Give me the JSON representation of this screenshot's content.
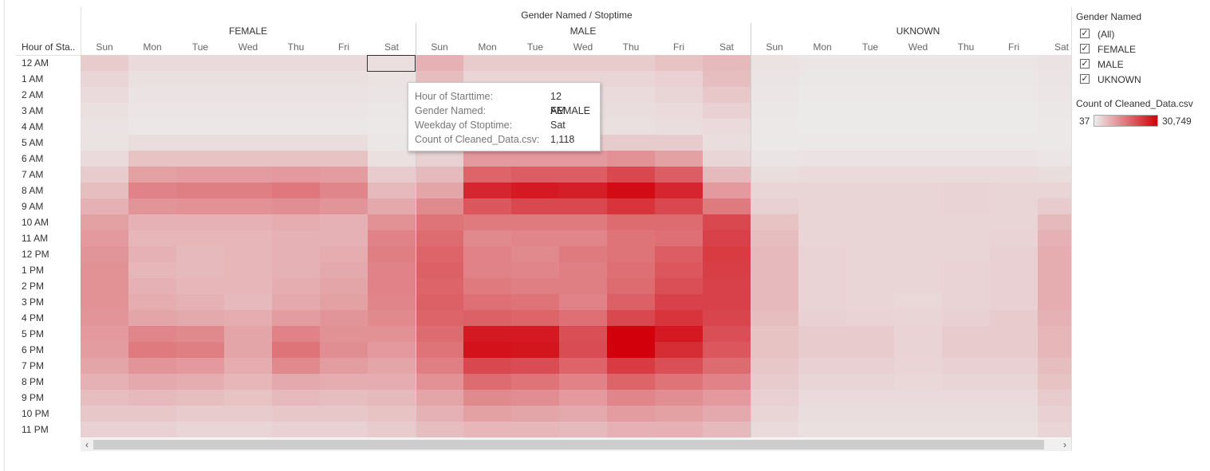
{
  "chart_data": {
    "type": "heatmap",
    "title": "Gender Named / Stoptime",
    "row_header": "Hour of Sta..",
    "groups": [
      "FEMALE",
      "MALE",
      "UKNOWN"
    ],
    "days": [
      "Sun",
      "Mon",
      "Tue",
      "Wed",
      "Thu",
      "Fri",
      "Sat"
    ],
    "hours": [
      "12 AM",
      "1 AM",
      "2 AM",
      "3 AM",
      "4 AM",
      "5 AM",
      "6 AM",
      "7 AM",
      "8 AM",
      "9 AM",
      "10 AM",
      "11 AM",
      "12 PM",
      "1 PM",
      "2 PM",
      "3 PM",
      "4 PM",
      "5 PM",
      "6 PM",
      "7 PM",
      "8 PM",
      "9 PM",
      "10 PM",
      "11 PM"
    ],
    "color_range": [
      37,
      30749
    ],
    "color_low": "#ececec",
    "color_high": "#d1000a",
    "values": {
      "FEMALE": [
        [
          3000,
          1500,
          1500,
          1500,
          1500,
          1500,
          1118
        ],
        [
          2000,
          1000,
          1000,
          1000,
          1000,
          1000,
          800
        ],
        [
          1500,
          700,
          700,
          700,
          700,
          700,
          600
        ],
        [
          1000,
          500,
          500,
          500,
          500,
          500,
          400
        ],
        [
          700,
          400,
          400,
          400,
          400,
          400,
          300
        ],
        [
          800,
          1200,
          1200,
          1200,
          1200,
          1200,
          400
        ],
        [
          1500,
          4000,
          4000,
          4000,
          4000,
          4000,
          1000
        ],
        [
          3000,
          8000,
          8500,
          8500,
          9000,
          8500,
          3000
        ],
        [
          4500,
          12000,
          12500,
          12500,
          13500,
          11500,
          5000
        ],
        [
          6000,
          9500,
          10000,
          10000,
          10500,
          9500,
          7000
        ],
        [
          8000,
          6000,
          6000,
          6000,
          6500,
          6000,
          10000
        ],
        [
          9000,
          5500,
          5500,
          5500,
          6000,
          6000,
          12000
        ],
        [
          9500,
          6000,
          5000,
          5500,
          6000,
          6500,
          12500
        ],
        [
          10000,
          5500,
          5000,
          5500,
          6000,
          7000,
          12000
        ],
        [
          10000,
          6000,
          5500,
          5500,
          6500,
          7500,
          12000
        ],
        [
          10000,
          6500,
          6000,
          5000,
          7000,
          8000,
          11500
        ],
        [
          9500,
          7500,
          7000,
          6500,
          8500,
          9500,
          11000
        ],
        [
          9000,
          11500,
          11000,
          7500,
          12000,
          10000,
          10000
        ],
        [
          8500,
          13000,
          12500,
          7500,
          14000,
          10500,
          9000
        ],
        [
          7500,
          9500,
          9000,
          6500,
          11000,
          8500,
          7500
        ],
        [
          6000,
          7000,
          6500,
          5500,
          7000,
          6500,
          6500
        ],
        [
          4500,
          5000,
          4500,
          4000,
          5000,
          4500,
          5000
        ],
        [
          3500,
          3500,
          3000,
          3000,
          3500,
          3500,
          4000
        ],
        [
          2500,
          2500,
          2000,
          2000,
          2500,
          2500,
          3000
        ]
      ],
      "MALE": [
        [
          6000,
          3000,
          3000,
          3000,
          3000,
          4000,
          5000
        ],
        [
          4500,
          2000,
          2000,
          2000,
          2000,
          2500,
          4500
        ],
        [
          3500,
          1500,
          1500,
          1500,
          1500,
          2000,
          3500
        ],
        [
          2500,
          1200,
          1200,
          1200,
          1200,
          1500,
          2500
        ],
        [
          1500,
          1000,
          1000,
          1000,
          1000,
          1200,
          1500
        ],
        [
          1500,
          3000,
          3000,
          3000,
          3000,
          3000,
          1200
        ],
        [
          2500,
          9000,
          9000,
          9000,
          10000,
          8000,
          2000
        ],
        [
          5000,
          16000,
          17000,
          17000,
          20000,
          17000,
          5000
        ],
        [
          7500,
          25000,
          27000,
          26000,
          29000,
          25000,
          9000
        ],
        [
          11000,
          18000,
          20000,
          20000,
          23000,
          20000,
          13000
        ],
        [
          14000,
          13000,
          13000,
          13000,
          15000,
          15000,
          20000
        ],
        [
          15000,
          11000,
          11500,
          11500,
          14000,
          14500,
          21000
        ],
        [
          16000,
          12000,
          11000,
          13000,
          14000,
          17000,
          22000
        ],
        [
          16500,
          12000,
          11500,
          12500,
          14500,
          18000,
          21500
        ],
        [
          16000,
          13000,
          12500,
          12500,
          15000,
          19000,
          21000
        ],
        [
          16500,
          14500,
          14000,
          12000,
          16500,
          21000,
          21000
        ],
        [
          16000,
          16500,
          16000,
          14500,
          20000,
          23000,
          20500
        ],
        [
          15000,
          27000,
          27000,
          19000,
          30749,
          27000,
          19000
        ],
        [
          14000,
          28000,
          27500,
          19500,
          30749,
          24000,
          18000
        ],
        [
          12500,
          20000,
          19500,
          16000,
          22000,
          19000,
          15000
        ],
        [
          10000,
          15000,
          14000,
          12000,
          16000,
          14000,
          12000
        ],
        [
          7500,
          11000,
          10500,
          9000,
          11500,
          10500,
          9000
        ],
        [
          6000,
          8000,
          7500,
          7000,
          8500,
          8000,
          7000
        ],
        [
          4500,
          5500,
          5500,
          5000,
          6000,
          6000,
          5000
        ]
      ],
      "UKNOWN": [
        [
          800,
          500,
          500,
          500,
          500,
          500,
          700
        ],
        [
          600,
          400,
          400,
          400,
          400,
          400,
          600
        ],
        [
          500,
          300,
          300,
          300,
          300,
          300,
          500
        ],
        [
          400,
          250,
          250,
          250,
          250,
          250,
          400
        ],
        [
          300,
          200,
          200,
          200,
          200,
          200,
          300
        ],
        [
          300,
          300,
          300,
          300,
          300,
          300,
          300
        ],
        [
          600,
          700,
          700,
          700,
          700,
          700,
          500
        ],
        [
          1200,
          1500,
          1500,
          1500,
          1500,
          1500,
          1200
        ],
        [
          2000,
          2000,
          2000,
          2000,
          2200,
          2000,
          2000
        ],
        [
          2500,
          2000,
          2000,
          2000,
          2200,
          2000,
          3000
        ],
        [
          4000,
          2000,
          2000,
          2000,
          2000,
          2000,
          5000
        ],
        [
          4500,
          2000,
          2000,
          2000,
          2000,
          2200,
          6000
        ],
        [
          5000,
          2200,
          2000,
          2000,
          2000,
          2500,
          6500
        ],
        [
          5000,
          2200,
          2000,
          2000,
          2200,
          2500,
          6500
        ],
        [
          5000,
          2200,
          2000,
          2000,
          2200,
          2500,
          6500
        ],
        [
          5000,
          2200,
          2000,
          1800,
          2200,
          2500,
          6500
        ],
        [
          4500,
          2500,
          2200,
          2000,
          2500,
          3000,
          6000
        ],
        [
          4000,
          3000,
          3000,
          2200,
          3000,
          3000,
          5500
        ],
        [
          4000,
          3000,
          3000,
          2200,
          3000,
          3000,
          5500
        ],
        [
          3500,
          2500,
          2500,
          2000,
          2500,
          2500,
          4500
        ],
        [
          3000,
          2000,
          2000,
          1800,
          2000,
          2000,
          4000
        ],
        [
          2500,
          1500,
          1500,
          1500,
          1500,
          1500,
          3000
        ],
        [
          2000,
          1200,
          1200,
          1200,
          1200,
          1200,
          2500
        ],
        [
          1500,
          1000,
          1000,
          1000,
          1000,
          1000,
          2000
        ]
      ]
    }
  },
  "tooltip": {
    "rows": [
      {
        "key": "Hour of Starttime:",
        "value": "12 AM"
      },
      {
        "key": "Gender Named:",
        "value": "FEMALE"
      },
      {
        "key": "Weekday of Stoptime:",
        "value": "Sat"
      },
      {
        "key": "Count of Cleaned_Data.csv:",
        "value": "1,118"
      }
    ]
  },
  "filter": {
    "title": "Gender Named",
    "items": [
      {
        "label": "(All)",
        "checked": true
      },
      {
        "label": "FEMALE",
        "checked": true
      },
      {
        "label": "MALE",
        "checked": true
      },
      {
        "label": "UKNOWN",
        "checked": true
      }
    ]
  },
  "legend": {
    "title": "Count of Cleaned_Data.csv",
    "min_label": "37",
    "max_label": "30,749"
  },
  "scrollbar": {
    "left_arrow": "‹",
    "right_arrow": "›"
  }
}
